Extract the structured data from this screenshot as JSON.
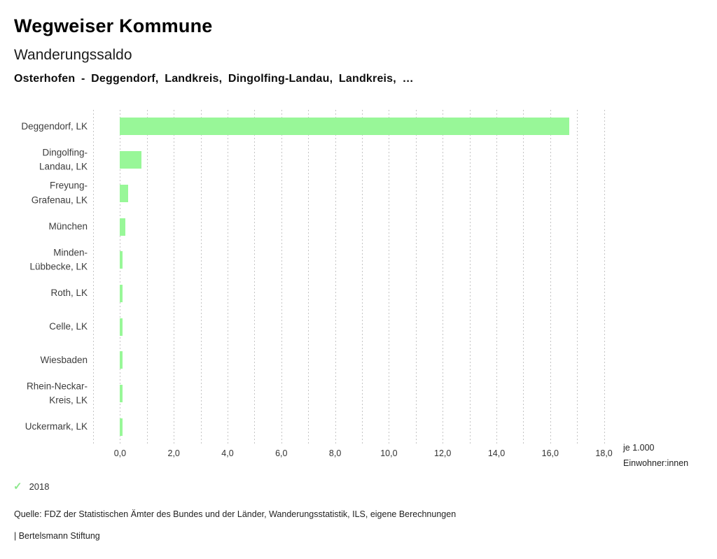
{
  "header": {
    "title": "Wegweiser Kommune",
    "subtitle": "Wanderungssaldo",
    "selection": "Osterhofen - Deggendorf, Landkreis, Dingolfing-Landau, Landkreis, …"
  },
  "chart_data": {
    "type": "bar",
    "orientation": "horizontal",
    "title": "Wanderungssaldo",
    "categories": [
      "Deggendorf, LK",
      "Dingolfing-Landau, LK",
      "Freyung-Grafenau, LK",
      "München",
      "Minden-Lübbecke, LK",
      "Roth, LK",
      "Celle, LK",
      "Wiesbaden",
      "Rhein-Neckar-Kreis, LK",
      "Uckermark, LK"
    ],
    "label_lines": [
      [
        "Deggendorf, LK"
      ],
      [
        "Dingolfing-",
        "Landau, LK"
      ],
      [
        "Freyung-",
        "Grafenau, LK"
      ],
      [
        "München"
      ],
      [
        "Minden-",
        "Lübbecke, LK"
      ],
      [
        "Roth, LK"
      ],
      [
        "Celle, LK"
      ],
      [
        "Wiesbaden"
      ],
      [
        "Rhein-Neckar-",
        "Kreis, LK"
      ],
      [
        "Uckermark, LK"
      ]
    ],
    "values": [
      16.7,
      0.8,
      0.3,
      0.2,
      0.1,
      0.1,
      0.1,
      0.1,
      0.1,
      0.1
    ],
    "x_ticks": [
      {
        "v": 0,
        "label": "0,0"
      },
      {
        "v": 2,
        "label": "2,0"
      },
      {
        "v": 4,
        "label": "4,0"
      },
      {
        "v": 6,
        "label": "6,0"
      },
      {
        "v": 8,
        "label": "8,0"
      },
      {
        "v": 10,
        "label": "10,0"
      },
      {
        "v": 12,
        "label": "12,0"
      },
      {
        "v": 14,
        "label": "14,0"
      },
      {
        "v": 16,
        "label": "16,0"
      },
      {
        "v": 18,
        "label": "18,0"
      }
    ],
    "xlim": [
      -1,
      18.4
    ],
    "grid": true,
    "legend_position": "none",
    "unit_label": [
      "je 1.000",
      "Einwohner:innen"
    ],
    "bar_color": "#98f798",
    "gridline_color": "#c4c4c4"
  },
  "legend": {
    "year": "2018",
    "check_icon": "checkmark",
    "check_color": "#8de88d"
  },
  "footer": {
    "source": "Quelle: FDZ der Statistischen Ämter des Bundes und der Länder, Wanderungsstatistik, ILS, eigene Berechnungen",
    "attribution": "| Bertelsmann Stiftung"
  }
}
